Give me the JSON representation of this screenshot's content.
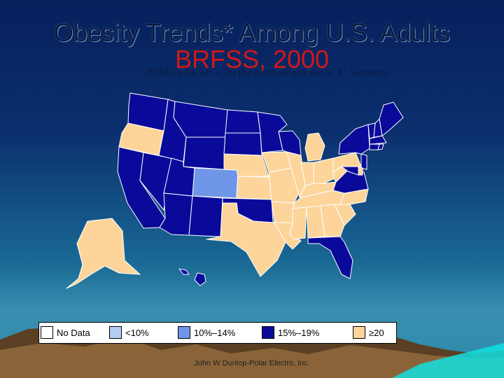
{
  "title": {
    "line1": "Obesity Trends* Among U.S. Adults",
    "line2": "BRFSS, 2000",
    "note": "(*BMI ≥30, or ~ 30 lbs overweight for 5’ 4” woman)"
  },
  "legend": [
    {
      "label": "No Data",
      "color": "#ffffff"
    },
    {
      "label": "<10%",
      "color": "#b4cdf2"
    },
    {
      "label": "10%–14%",
      "color": "#6f96e8"
    },
    {
      "label": "15%–19%",
      "color": "#0a0a9a"
    },
    {
      "label": "≥20",
      "color": "#fdd59b"
    }
  ],
  "states": {
    "WA": "15%–19%",
    "OR": "≥20",
    "CA": "15%–19%",
    "NV": "15%–19%",
    "ID": "15%–19%",
    "MT": "15%–19%",
    "WY": "15%–19%",
    "UT": "15%–19%",
    "AZ": "15%–19%",
    "CO": "10%–14%",
    "NM": "15%–19%",
    "ND": "15%–19%",
    "SD": "15%–19%",
    "NE": "≥20",
    "KS": "≥20",
    "OK": "15%–19%",
    "TX": "≥20",
    "MN": "15%–19%",
    "IA": "≥20",
    "MO": "≥20",
    "AR": "≥20",
    "LA": "≥20",
    "WI": "15%–19%",
    "IL": "≥20",
    "MI": "≥20",
    "IN": "≥20",
    "OH": "≥20",
    "KY": "≥20",
    "TN": "≥20",
    "MS": "≥20",
    "AL": "≥20",
    "GA": "≥20",
    "FL": "15%–19%",
    "SC": "≥20",
    "NC": "≥20",
    "VA": "15%–19%",
    "WV": "≥20",
    "PA": "≥20",
    "NY": "15%–19%",
    "ME": "15%–19%",
    "NH": "15%–19%",
    "VT": "15%–19%",
    "MA": "15%–19%",
    "CT": "15%–19%",
    "RI": "15%–19%",
    "NJ": "15%–19%",
    "DE": "≥20",
    "MD": "15%–19%",
    "AK": "≥20",
    "HI": "15%–19%"
  },
  "footer": "John W Dunlop-Polar Electro, Inc."
}
